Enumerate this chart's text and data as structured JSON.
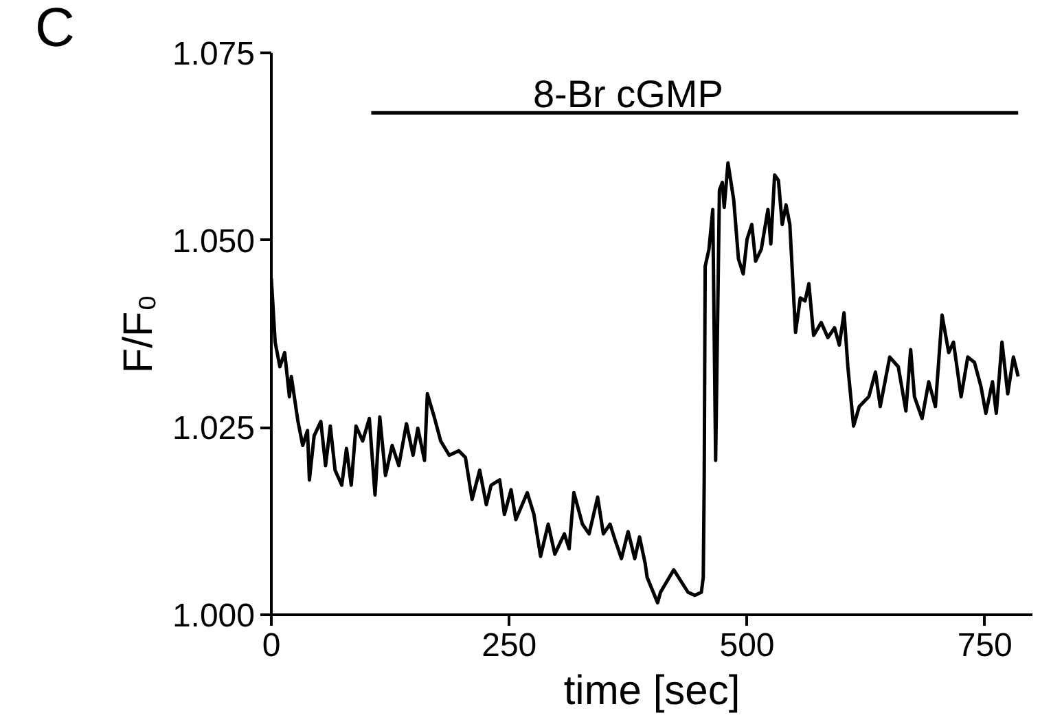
{
  "chart_data": {
    "type": "line",
    "xlabel": "time [sec]",
    "ylabel": "F/F₀",
    "annotations": [
      "C",
      {
        "text": "8-Br cGMP",
        "x": 275,
        "y": 1.067
      }
    ],
    "x": [
      0,
      4,
      9,
      14,
      19,
      21,
      28,
      33,
      38,
      40,
      45,
      52,
      57,
      62,
      67,
      74,
      79,
      84,
      89,
      96,
      103,
      109,
      114,
      120,
      127,
      134,
      142,
      149,
      154,
      161,
      164,
      171,
      178,
      187,
      197,
      204,
      211,
      219,
      226,
      231,
      240,
      245,
      252,
      257,
      269,
      276,
      283,
      291,
      298,
      308,
      313,
      318,
      327,
      334,
      343,
      349,
      356,
      361,
      368,
      375,
      382,
      387,
      393,
      395,
      406,
      409,
      423,
      438,
      445,
      452,
      454,
      455,
      456,
      460,
      464,
      467,
      471,
      474,
      476,
      480,
      486,
      491,
      496,
      500,
      505,
      509,
      515,
      522,
      525,
      529,
      533,
      537,
      541,
      545,
      551,
      556,
      561,
      565,
      570,
      578,
      585,
      592,
      597,
      602,
      606,
      612,
      618,
      628,
      635,
      640,
      650,
      659,
      667,
      672,
      676,
      684,
      691,
      698,
      705,
      712,
      717,
      725,
      732,
      739,
      746,
      751,
      758,
      762,
      768,
      774,
      780,
      785
    ],
    "series": [
      {
        "color": "#000000",
        "values": [
          1.0449,
          1.0364,
          1.0331,
          1.035,
          1.0291,
          1.0318,
          1.0258,
          1.0226,
          1.0246,
          1.018,
          1.0239,
          1.0258,
          1.0199,
          1.0252,
          1.0193,
          1.0173,
          1.0222,
          1.0173,
          1.0252,
          1.0232,
          1.0262,
          1.016,
          1.0264,
          1.0186,
          1.0226,
          1.0199,
          1.0255,
          1.0213,
          1.0249,
          1.0206,
          1.0295,
          1.0265,
          1.0232,
          1.0213,
          1.0219,
          1.021,
          1.0154,
          1.0193,
          1.0147,
          1.0173,
          1.018,
          1.0134,
          1.0167,
          1.0127,
          1.0163,
          1.0134,
          1.0078,
          1.0121,
          1.0081,
          1.0108,
          1.0088,
          1.0163,
          1.0121,
          1.0108,
          1.0157,
          1.0108,
          1.0121,
          1.0101,
          1.0075,
          1.0111,
          1.0075,
          1.0104,
          1.0068,
          1.005,
          1.0016,
          1.003,
          1.006,
          1.003,
          1.0026,
          1.003,
          1.005,
          1.018,
          1.0465,
          1.0488,
          1.0541,
          1.0206,
          1.0567,
          1.0577,
          1.0544,
          1.0603,
          1.0554,
          1.0475,
          1.0455,
          1.0501,
          1.0521,
          1.0472,
          1.0488,
          1.0541,
          1.0495,
          1.0587,
          1.058,
          1.0521,
          1.0547,
          1.0521,
          1.0377,
          1.0423,
          1.0419,
          1.0442,
          1.0373,
          1.039,
          1.037,
          1.0383,
          1.036,
          1.0403,
          1.0331,
          1.0252,
          1.0278,
          1.0291,
          1.0324,
          1.0278,
          1.0344,
          1.0331,
          1.0272,
          1.0354,
          1.0291,
          1.0262,
          1.0311,
          1.0278,
          1.04,
          1.035,
          1.0364,
          1.0291,
          1.0344,
          1.0337,
          1.0304,
          1.0269,
          1.0311,
          1.0269,
          1.0364,
          1.0295,
          1.0344,
          1.0318
        ]
      },
      {
        "type": "line",
        "color": "#000000",
        "x": [
          105,
          785
        ],
        "values": [
          1.067,
          1.067
        ]
      }
    ],
    "xlim": [
      0,
      800
    ],
    "ylim": [
      1.0,
      1.075
    ],
    "xticks": [
      0,
      250,
      500,
      750
    ],
    "yticks": [
      {
        "value": 1.0,
        "label": "1.000"
      },
      {
        "value": 1.025,
        "label": "1.025"
      },
      {
        "value": 1.05,
        "label": "1.050"
      },
      {
        "value": 1.075,
        "label": "1.075"
      }
    ],
    "grid": false,
    "marker": "none",
    "line_style": "solid"
  }
}
